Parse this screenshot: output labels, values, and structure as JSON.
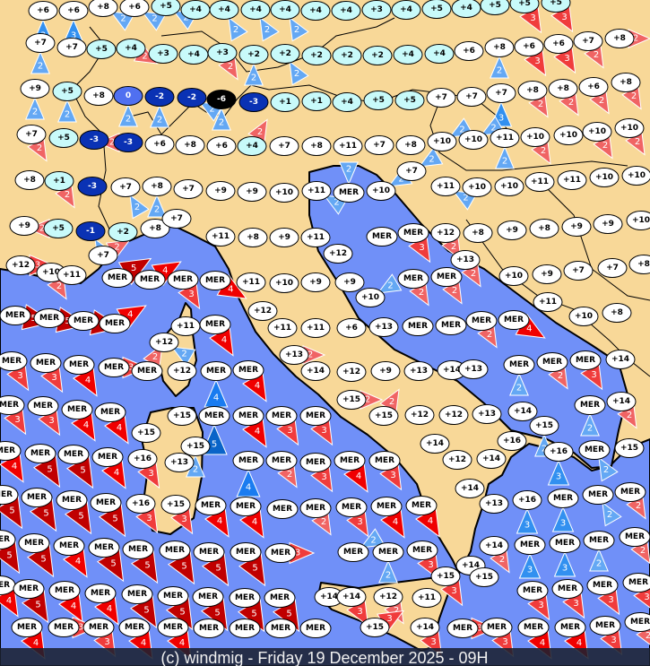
{
  "footer": {
    "credit": "(c) windmig - Friday 19 December 2025 - 09H"
  },
  "colors": {
    "land": "#f8d898",
    "sea": "#7090f8",
    "border": "#000000",
    "footer_bg": "#1a2030"
  },
  "temp_colors": {
    "warm": "#ffffff",
    "mild": "#c8fafa",
    "zero": "#5070f0",
    "cold": "#0a32b4",
    "frigid": "#000000"
  },
  "wind_colors": {
    "b": {
      "2": "#64a8f4",
      "3": "#3290f0",
      "4": "#1a7cf0",
      "5": "#0a64c8"
    },
    "r": {
      "2": "#f06464",
      "3": "#f03c3c",
      "4": "#f00000",
      "5": "#c00000"
    }
  },
  "stations": [
    {
      "t": "+6",
      "w": 3,
      "c": "b",
      "d": 0
    },
    {
      "t": "+6",
      "w": 3,
      "c": "b",
      "d": 0
    },
    {
      "t": "+8",
      "w": 2,
      "c": "b",
      "d": 300
    },
    {
      "t": "+6",
      "w": 2,
      "c": "b",
      "d": 300
    },
    {
      "t": "+5",
      "w": 2,
      "c": "b",
      "d": 300
    },
    {
      "t": "+4"
    },
    {
      "t": "+4",
      "w": 2,
      "c": "b",
      "d": 330
    },
    {
      "t": "+4",
      "w": 2,
      "c": "b",
      "d": 330
    },
    {
      "t": "+4",
      "w": 2,
      "c": "b",
      "d": 330
    },
    {
      "t": "+4"
    },
    {
      "t": "+4"
    },
    {
      "t": "+3"
    },
    {
      "t": "+4"
    },
    {
      "t": "+5"
    },
    {
      "t": "+4"
    },
    {
      "t": "+5"
    },
    {
      "t": "+5",
      "w": 3,
      "c": "r",
      "d": 150
    },
    {
      "t": "+5",
      "w": 3,
      "c": "r",
      "d": 150
    },
    {
      "t": "+7",
      "w": 2,
      "c": "b",
      "d": 0
    },
    {
      "t": "+7"
    },
    {
      "t": "+5"
    },
    {
      "t": "+4",
      "w": 2,
      "c": "r",
      "d": 120
    },
    {
      "t": "+3"
    },
    {
      "t": "+4"
    },
    {
      "t": "+3",
      "w": 2,
      "c": "r",
      "d": 150
    },
    {
      "t": "+2",
      "w": 2,
      "c": "b",
      "d": 0
    },
    {
      "t": "+2",
      "w": 2,
      "c": "b",
      "d": 330
    },
    {
      "t": "+2"
    },
    {
      "t": "+2"
    },
    {
      "t": "+2"
    },
    {
      "t": "+4"
    },
    {
      "t": "+4"
    },
    {
      "t": "+6"
    },
    {
      "t": "+8",
      "w": 2,
      "c": "b",
      "d": 0
    },
    {
      "t": "+6",
      "w": 3,
      "c": "r",
      "d": 150
    },
    {
      "t": "+6",
      "w": 3,
      "c": "r",
      "d": 150
    },
    {
      "t": "+7",
      "w": 2,
      "c": "r",
      "d": 150
    },
    {
      "t": "+8",
      "w": 2,
      "c": "r",
      "d": 90
    },
    {
      "t": "+9",
      "w": 2,
      "c": "b",
      "d": 0
    },
    {
      "t": "+5",
      "w": 2,
      "c": "b",
      "d": 0
    },
    {
      "t": "+8"
    },
    {
      "t": "0",
      "w": 2,
      "c": "b",
      "d": 0
    },
    {
      "t": "-2",
      "w": 2,
      "c": "b",
      "d": 0
    },
    {
      "t": "-2",
      "w": 2,
      "c": "b",
      "d": 300
    },
    {
      "t": "-6",
      "w": 2,
      "c": "b",
      "d": 0
    },
    {
      "t": "-3"
    },
    {
      "t": "+1"
    },
    {
      "t": "+1"
    },
    {
      "t": "+4"
    },
    {
      "t": "+5"
    },
    {
      "t": "+5"
    },
    {
      "t": "+7"
    },
    {
      "t": "+7"
    },
    {
      "t": "+7",
      "w": 3,
      "c": "b",
      "d": 0
    },
    {
      "t": "+8",
      "w": 2,
      "c": "r",
      "d": 150
    },
    {
      "t": "+8",
      "w": 2,
      "c": "r",
      "d": 150
    },
    {
      "t": "+6",
      "w": 2,
      "c": "r",
      "d": 150
    },
    {
      "t": "+8",
      "w": 2,
      "c": "r",
      "d": 150
    },
    {
      "t": "+7",
      "w": 2,
      "c": "r",
      "d": 150
    },
    {
      "t": "+5"
    },
    {
      "t": "-3"
    },
    {
      "t": "-3",
      "w": 2,
      "c": "r",
      "d": 270
    },
    {
      "t": "+6"
    },
    {
      "t": "+8"
    },
    {
      "t": "+6"
    },
    {
      "t": "+4",
      "w": 2,
      "c": "r",
      "d": 30
    },
    {
      "t": "+7"
    },
    {
      "t": "+8"
    },
    {
      "t": "+11"
    },
    {
      "t": "+7"
    },
    {
      "t": "+8"
    },
    {
      "t": "+10",
      "w": 2,
      "c": "b",
      "d": 240
    },
    {
      "t": "+10",
      "w": 2,
      "c": "b",
      "d": 240
    },
    {
      "t": "+11",
      "w": 2,
      "c": "b",
      "d": 0
    },
    {
      "t": "+10",
      "w": 2,
      "c": "r",
      "d": 150
    },
    {
      "t": "+10"
    },
    {
      "t": "+10",
      "w": 2,
      "c": "r",
      "d": 150
    },
    {
      "t": "+10",
      "w": 2,
      "c": "r",
      "d": 150
    },
    {
      "t": "+8"
    },
    {
      "t": "+1",
      "w": 2,
      "c": "r",
      "d": 150
    },
    {
      "t": "-3"
    },
    {
      "t": "+7",
      "w": 2,
      "c": "b",
      "d": 330
    },
    {
      "t": "+8",
      "w": 2,
      "c": "b",
      "d": 0
    },
    {
      "t": "+7"
    },
    {
      "t": "+9"
    },
    {
      "t": "+9"
    },
    {
      "t": "+10"
    },
    {
      "t": "+11",
      "w": 2,
      "c": "b",
      "d": 300
    },
    {
      "t": "MER",
      "w": 2,
      "c": "b",
      "d": 180
    },
    {
      "t": "+10",
      "w": 2,
      "c": "b",
      "d": 240
    },
    {
      "t": "+7",
      "w": 2,
      "c": "b",
      "d": 240
    },
    {
      "t": "+11",
      "w": 2,
      "c": "b",
      "d": 300
    },
    {
      "t": "+10"
    },
    {
      "t": "+10"
    },
    {
      "t": "+11"
    },
    {
      "t": "+11"
    },
    {
      "t": "+10"
    },
    {
      "t": "+10"
    },
    {
      "t": "+9"
    },
    {
      "t": "+5",
      "w": 2,
      "c": "r",
      "d": 270
    },
    {
      "t": "-1",
      "w": 2,
      "c": "b",
      "d": 330
    },
    {
      "t": "+2"
    },
    {
      "t": "+8"
    },
    {
      "t": "+7"
    },
    {
      "t": "+11"
    },
    {
      "t": "+8"
    },
    {
      "t": "+9"
    },
    {
      "t": "+11"
    },
    {
      "t": "MER"
    },
    {
      "t": "MER",
      "w": 3,
      "c": "r",
      "d": 150
    },
    {
      "t": "+12",
      "w": 2,
      "c": "r",
      "d": 150
    },
    {
      "t": "+8"
    },
    {
      "t": "+9"
    },
    {
      "t": "+8"
    },
    {
      "t": "+9"
    },
    {
      "t": "+9"
    },
    {
      "t": "+10"
    },
    {
      "t": "+7",
      "w": 2,
      "c": "r",
      "d": 60
    },
    {
      "t": "+12",
      "w": 3,
      "c": "r",
      "d": 90
    },
    {
      "t": "+10",
      "w": 2,
      "c": "r",
      "d": 150
    },
    {
      "t": "+11"
    },
    {
      "t": "MER",
      "w": 5,
      "c": "r",
      "d": 60
    },
    {
      "t": "MER",
      "w": 4,
      "c": "r",
      "d": 60
    },
    {
      "t": "MER",
      "w": 3,
      "c": "r",
      "d": 150
    },
    {
      "t": "MER",
      "w": 4,
      "c": "r",
      "d": 120
    },
    {
      "t": "+11"
    },
    {
      "t": "+10"
    },
    {
      "t": "+9"
    },
    {
      "t": "+12"
    },
    {
      "t": "+9"
    },
    {
      "t": "+10",
      "w": 2,
      "c": "b",
      "d": 240
    },
    {
      "t": "MER",
      "w": 2,
      "c": "r",
      "d": 150
    },
    {
      "t": "MER",
      "w": 2,
      "c": "r",
      "d": 150
    },
    {
      "t": "+13",
      "w": 2,
      "c": "r",
      "d": 150
    },
    {
      "t": "+10"
    },
    {
      "t": "+9"
    },
    {
      "t": "+7"
    },
    {
      "t": "+7"
    },
    {
      "t": "+8"
    },
    {
      "t": "MER",
      "w": 5,
      "c": "r",
      "d": 100
    },
    {
      "t": "MER",
      "w": 5,
      "c": "r",
      "d": 100
    },
    {
      "t": "MER",
      "w": 5,
      "c": "r",
      "d": 100
    },
    {
      "t": "MER",
      "w": 4,
      "c": "r",
      "d": 60
    },
    {
      "t": "+11"
    },
    {
      "t": "+12",
      "w": 2,
      "c": "b",
      "d": 300
    },
    {
      "t": "MER",
      "w": 4,
      "c": "r",
      "d": 150
    },
    {
      "t": "+12"
    },
    {
      "t": "+11"
    },
    {
      "t": "+11"
    },
    {
      "t": "+6"
    },
    {
      "t": "+13"
    },
    {
      "t": "MER"
    },
    {
      "t": "MER"
    },
    {
      "t": "MER",
      "w": 2,
      "c": "r",
      "d": 150
    },
    {
      "t": "MER",
      "w": 4,
      "c": "r",
      "d": 120
    },
    {
      "t": "+11"
    },
    {
      "t": "+10"
    },
    {
      "t": "+8"
    },
    {
      "t": "MER",
      "w": 3,
      "c": "r",
      "d": 150
    },
    {
      "t": "MER",
      "w": 3,
      "c": "r",
      "d": 150
    },
    {
      "t": "MER",
      "w": 4,
      "c": "r",
      "d": 150
    },
    {
      "t": "MER",
      "w": 3,
      "c": "r",
      "d": 90
    },
    {
      "t": "MER",
      "w": 2,
      "c": "r",
      "d": 30
    },
    {
      "t": "+12"
    },
    {
      "t": "MER",
      "w": 4,
      "c": "b",
      "d": 0
    },
    {
      "t": "MER",
      "w": 4,
      "c": "r",
      "d": 150
    },
    {
      "t": "+13",
      "w": 2,
      "c": "r",
      "d": 90
    },
    {
      "t": "+14"
    },
    {
      "t": "+12"
    },
    {
      "t": "+9"
    },
    {
      "t": "+13"
    },
    {
      "t": "+14"
    },
    {
      "t": "+13"
    },
    {
      "t": "MER",
      "w": 2,
      "c": "b",
      "d": 0
    },
    {
      "t": "MER",
      "w": 2,
      "c": "r",
      "d": 150
    },
    {
      "t": "MER",
      "w": 3,
      "c": "r",
      "d": 150
    },
    {
      "t": "+14"
    },
    {
      "t": "MER",
      "w": 3,
      "c": "r",
      "d": 150
    },
    {
      "t": "MER",
      "w": 3,
      "c": "r",
      "d": 150
    },
    {
      "t": "MER",
      "w": 4,
      "c": "r",
      "d": 150
    },
    {
      "t": "MER",
      "w": 4,
      "c": "r",
      "d": 150
    },
    {
      "t": "+15"
    },
    {
      "t": "+15"
    },
    {
      "t": "+15",
      "w": 2,
      "c": "b",
      "d": 0
    },
    {
      "t": "MER",
      "w": 5,
      "c": "b",
      "d": 0
    },
    {
      "t": "MER",
      "w": 4,
      "c": "r",
      "d": 150
    },
    {
      "t": "MER",
      "w": 3,
      "c": "r",
      "d": 150
    },
    {
      "t": "MER",
      "w": 3,
      "c": "r",
      "d": 150
    },
    {
      "t": "+15",
      "w": 2,
      "c": "r",
      "d": 90
    },
    {
      "t": "+15",
      "w": 2,
      "c": "r",
      "d": 30
    },
    {
      "t": "+12"
    },
    {
      "t": "+12"
    },
    {
      "t": "+13"
    },
    {
      "t": "+14"
    },
    {
      "t": "+15",
      "w": 2,
      "c": "b",
      "d": 0
    },
    {
      "t": "+16"
    },
    {
      "t": "+16",
      "w": 3,
      "c": "b",
      "d": 0
    },
    {
      "t": "MER",
      "w": 2,
      "c": "b",
      "d": 330
    },
    {
      "t": "MER",
      "w": 2,
      "c": "b",
      "d": 0
    },
    {
      "t": "+14",
      "w": 2,
      "c": "r",
      "d": 150
    },
    {
      "t": "+15"
    },
    {
      "t": "MER",
      "w": 4,
      "c": "r",
      "d": 150
    },
    {
      "t": "MER",
      "w": 5,
      "c": "r",
      "d": 150
    },
    {
      "t": "MER",
      "w": 5,
      "c": "r",
      "d": 150
    },
    {
      "t": "MER",
      "w": 4,
      "c": "r",
      "d": 150
    },
    {
      "t": "+16",
      "w": 3,
      "c": "r",
      "d": 150
    },
    {
      "t": "+13"
    },
    {
      "t": "MER",
      "w": 4,
      "c": "b",
      "d": 0
    },
    {
      "t": "MER",
      "w": 2,
      "c": "r",
      "d": 150
    },
    {
      "t": "MER",
      "w": 3,
      "c": "r",
      "d": 150
    },
    {
      "t": "MER",
      "w": 4,
      "c": "r",
      "d": 150
    },
    {
      "t": "MER",
      "w": 3,
      "c": "r",
      "d": 150
    },
    {
      "t": "+14"
    },
    {
      "t": "+12"
    },
    {
      "t": "+14"
    },
    {
      "t": "MER",
      "w": 5,
      "c": "r",
      "d": 150
    },
    {
      "t": "MER",
      "w": 5,
      "c": "r",
      "d": 150
    },
    {
      "t": "MER",
      "w": 5,
      "c": "r",
      "d": 150
    },
    {
      "t": "MER",
      "w": 5,
      "c": "r",
      "d": 150
    },
    {
      "t": "+16",
      "w": 3,
      "c": "r",
      "d": 150
    },
    {
      "t": "+15",
      "w": 3,
      "c": "r",
      "d": 150
    },
    {
      "t": "MER",
      "w": 4,
      "c": "r",
      "d": 150
    },
    {
      "t": "MER",
      "w": 4,
      "c": "r",
      "d": 150
    },
    {
      "t": "MER"
    },
    {
      "t": "MER",
      "w": 2,
      "c": "r",
      "d": 150
    },
    {
      "t": "MER",
      "w": 3,
      "c": "r",
      "d": 150
    },
    {
      "t": "MER",
      "w": 4,
      "c": "r",
      "d": 150
    },
    {
      "t": "MER",
      "w": 4,
      "c": "r",
      "d": 150
    },
    {
      "t": "+14"
    },
    {
      "t": "+13"
    },
    {
      "t": "+16",
      "w": 3,
      "c": "b",
      "d": 0
    },
    {
      "t": "MER",
      "w": 3,
      "c": "b",
      "d": 0
    },
    {
      "t": "MER",
      "w": 2,
      "c": "b",
      "d": 330
    },
    {
      "t": "MER",
      "w": 2,
      "c": "r",
      "d": 150
    },
    {
      "t": "MER",
      "w": 5,
      "c": "r",
      "d": 150
    },
    {
      "t": "MER",
      "w": 5,
      "c": "r",
      "d": 150
    },
    {
      "t": "MER",
      "w": 4,
      "c": "r",
      "d": 150
    },
    {
      "t": "MER",
      "w": 5,
      "c": "r",
      "d": 150
    },
    {
      "t": "MER",
      "w": 5,
      "c": "r",
      "d": 150
    },
    {
      "t": "MER",
      "w": 5,
      "c": "r",
      "d": 150
    },
    {
      "t": "MER",
      "w": 5,
      "c": "r",
      "d": 150
    },
    {
      "t": "MER",
      "w": 5,
      "c": "r",
      "d": 150
    },
    {
      "t": "MER",
      "w": 3,
      "c": "r",
      "d": 90
    },
    {
      "t": "MER",
      "w": 2,
      "c": "b",
      "d": 240
    },
    {
      "t": "MER",
      "w": 2,
      "c": "b",
      "d": 0
    },
    {
      "t": "MER",
      "w": 3,
      "c": "r",
      "d": 150
    },
    {
      "t": "+15",
      "w": 3,
      "c": "r",
      "d": 150
    },
    {
      "t": "+14"
    },
    {
      "t": "+15"
    },
    {
      "t": "+14",
      "w": 2,
      "c": "r",
      "d": 150
    },
    {
      "t": "MER",
      "w": 3,
      "c": "b",
      "d": 0
    },
    {
      "t": "MER",
      "w": 3,
      "c": "b",
      "d": 0
    },
    {
      "t": "MER",
      "w": 2,
      "c": "b",
      "d": 0
    },
    {
      "t": "MER",
      "w": 2,
      "c": "r",
      "d": 150
    },
    {
      "t": "MER",
      "w": 4,
      "c": "r",
      "d": 150
    },
    {
      "t": "MER",
      "w": 5,
      "c": "r",
      "d": 150
    },
    {
      "t": "MER",
      "w": 4,
      "c": "r",
      "d": 150
    },
    {
      "t": "MER",
      "w": 4,
      "c": "r",
      "d": 150
    },
    {
      "t": "MER",
      "w": 5,
      "c": "r",
      "d": 150
    },
    {
      "t": "MER",
      "w": 5,
      "c": "r",
      "d": 150
    },
    {
      "t": "MER",
      "w": 5,
      "c": "r",
      "d": 150
    },
    {
      "t": "MER",
      "w": 5,
      "c": "r",
      "d": 150
    },
    {
      "t": "MER",
      "w": 5,
      "c": "r",
      "d": 150
    },
    {
      "t": "+14"
    },
    {
      "t": "+14",
      "w": 3,
      "c": "r",
      "d": 150
    },
    {
      "t": "+12",
      "w": 2,
      "c": "r",
      "d": 150
    },
    {
      "t": "+11"
    },
    {
      "t": "MER",
      "w": 3,
      "c": "r",
      "d": 150
    },
    {
      "t": "MER",
      "w": 3,
      "c": "r",
      "d": 150
    },
    {
      "t": "MER",
      "w": 3,
      "c": "r",
      "d": 150
    },
    {
      "t": "MER",
      "w": 3,
      "c": "r",
      "d": 150
    },
    {
      "t": "+15",
      "w": 3,
      "c": "r",
      "d": 60
    },
    {
      "t": "MER",
      "w": 4,
      "c": "r",
      "d": 150
    },
    {
      "t": "MER",
      "w": 3,
      "c": "r",
      "d": 90
    },
    {
      "t": "MER",
      "w": 3,
      "c": "r",
      "d": 150
    },
    {
      "t": "MER",
      "w": 4,
      "c": "r",
      "d": 150
    },
    {
      "t": "MER",
      "w": 4,
      "c": "r",
      "d": 150
    },
    {
      "t": "MER"
    },
    {
      "t": "MER"
    },
    {
      "t": "MER"
    },
    {
      "t": "MER"
    },
    {
      "t": "+14",
      "w": 3,
      "c": "r",
      "d": 150
    },
    {
      "t": "MER",
      "w": 3,
      "c": "r",
      "d": 90
    },
    {
      "t": "MER",
      "w": 3,
      "c": "r",
      "d": 150
    },
    {
      "t": "MER",
      "w": 4,
      "c": "r",
      "d": 150
    },
    {
      "t": "MER",
      "w": 4,
      "c": "r",
      "d": 150
    },
    {
      "t": "MER",
      "w": 3,
      "c": "r",
      "d": 150
    },
    {
      "t": "MER",
      "w": 2,
      "c": "r",
      "d": 150
    }
  ]
}
